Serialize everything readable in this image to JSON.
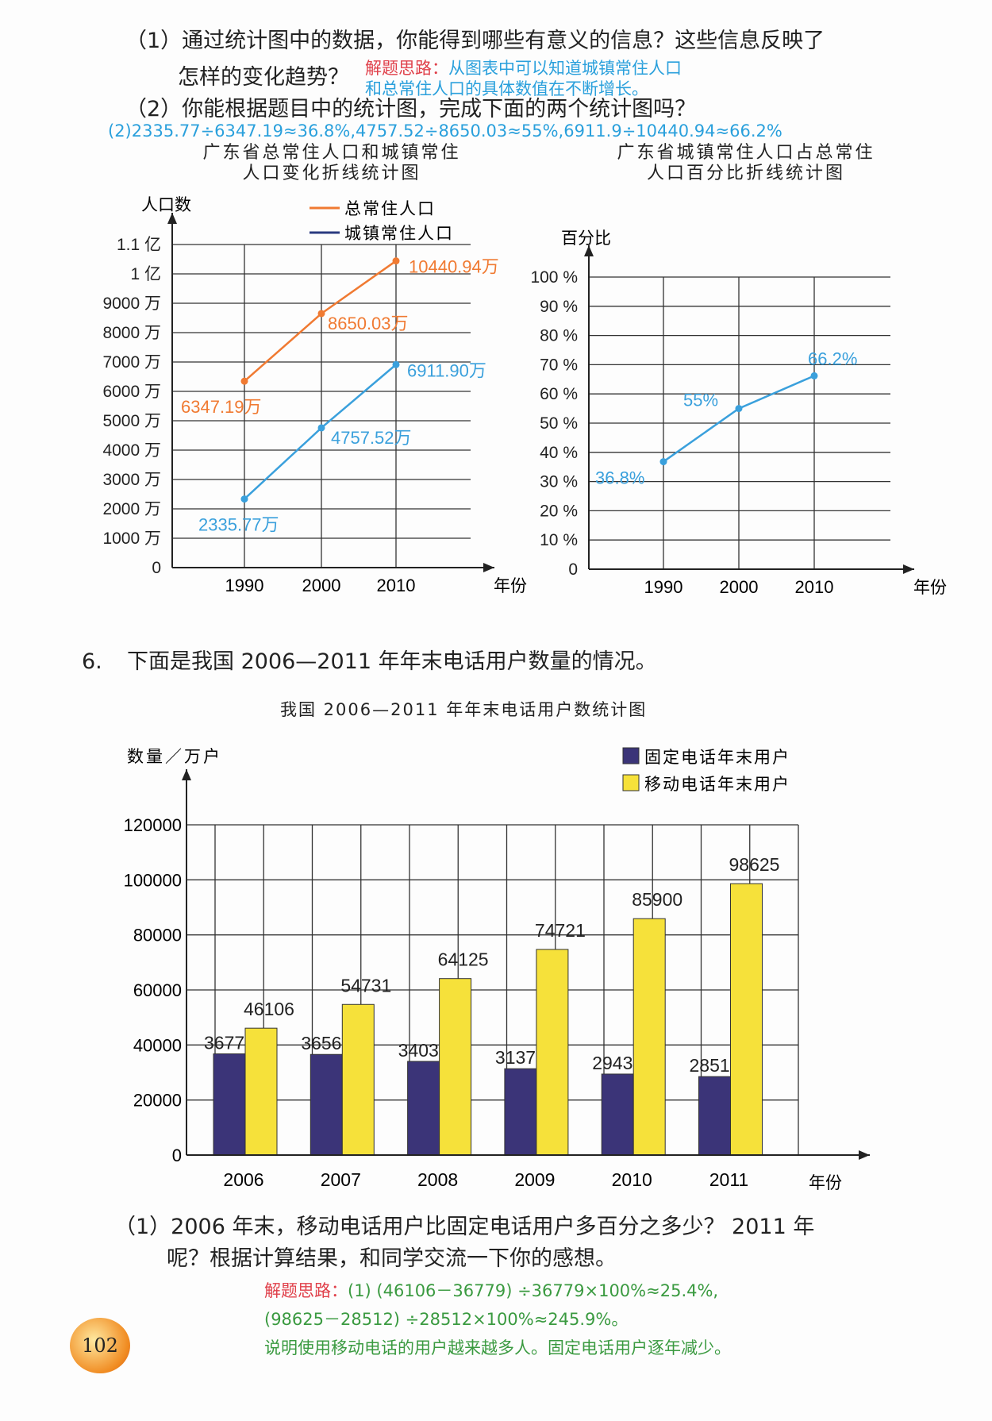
{
  "q5": {
    "part1_line1": "（1）通过统计图中的数据，你能得到哪些有意义的信息？这些信息反映了",
    "part1_line2": "怎样的变化趋势？",
    "hint_label": "解题思路：",
    "hint_line1": "从图表中可以知道城镇常住人口",
    "hint_line2": "和总常住人口的具体数值在不断增长。",
    "part2": "（2）你能根据题目中的统计图，完成下面的两个统计图吗？",
    "answer2": "(2)2335.77÷6347.19≈36.8%,4757.52÷8650.03≈55%,6911.9÷10440.94≈66.2%"
  },
  "chart_data": [
    {
      "type": "line",
      "title": "广东省总常住人口和城镇常住人口变化折线统计图",
      "title_line1": "广东省总常住人口和城镇常住",
      "title_line2": "人口变化折线统计图",
      "ylabel": "人口数",
      "xlabel": "年份",
      "categories": [
        "1990",
        "2000",
        "2010"
      ],
      "yticks": [
        "0",
        "1000 万",
        "2000 万",
        "3000 万",
        "4000 万",
        "5000 万",
        "6000 万",
        "7000 万",
        "8000 万",
        "9000 万",
        "1 亿",
        "1.1 亿"
      ],
      "ylim": [
        0,
        11000
      ],
      "series": [
        {
          "name": "总常住人口",
          "color": "#f07a32",
          "values": [
            6347.19,
            8650.03,
            10440.94
          ],
          "labels": [
            "6347.19万",
            "8650.03万",
            "10440.94万"
          ]
        },
        {
          "name": "城镇常住人口",
          "color": "#3aa0dc",
          "legend_color": "#2a3a80",
          "values": [
            2335.77,
            4757.52,
            6911.9
          ],
          "labels": [
            "2335.77万",
            "4757.52万",
            "6911.90万"
          ]
        }
      ]
    },
    {
      "type": "line",
      "title_line1": "广东省城镇常住人口占总常住",
      "title_line2": "人口百分比折线统计图",
      "ylabel": "百分比",
      "xlabel": "年份",
      "categories": [
        "1990",
        "2000",
        "2010"
      ],
      "yticks": [
        "0",
        "10 %",
        "20 %",
        "30 %",
        "40 %",
        "50 %",
        "60 %",
        "70 %",
        "80 %",
        "90 %",
        "100 %"
      ],
      "ylim": [
        0,
        100
      ],
      "series": [
        {
          "name": "百分比",
          "color": "#3aa0dc",
          "values": [
            36.8,
            55,
            66.2
          ],
          "labels": [
            "36.8%",
            "55%",
            "66.2%"
          ]
        }
      ]
    },
    {
      "type": "bar",
      "title": "我国 2006—2011 年年末电话用户数统计图",
      "ylabel": "数量／万户",
      "xlabel": "年份",
      "categories": [
        "2006",
        "2007",
        "2008",
        "2009",
        "2010",
        "2011"
      ],
      "yticks": [
        "0",
        "20000",
        "40000",
        "60000",
        "80000",
        "100000",
        "120000"
      ],
      "ylim": [
        0,
        120000
      ],
      "series": [
        {
          "name": "固定电话年末用户",
          "color": "#3b3478",
          "values": [
            36779,
            36564,
            34036,
            31373,
            29434,
            28512
          ]
        },
        {
          "name": "移动电话年末用户",
          "color": "#f6e13a",
          "values": [
            46106,
            54731,
            64125,
            74721,
            85900,
            98625
          ]
        }
      ]
    }
  ],
  "q6": {
    "number": "6.",
    "intro": "下面是我国 2006—2011 年年末电话用户数量的情况。",
    "part1_line1": "（1）2006 年末，移动电话用户比固定电话用户多百分之多少？ 2011 年",
    "part1_line2": "呢？根据计算结果，和同学交流一下你的感想。",
    "hint_label": "解题思路：",
    "hint_line1": "(1) (46106－36779) ÷36779×100%≈25.4%,",
    "hint_line2": "(98625－28512) ÷28512×100%≈245.9%。",
    "hint_line3": "说明使用移动电话的用户越来越多人。固定电话用户逐年减少。"
  },
  "page_number": "102"
}
